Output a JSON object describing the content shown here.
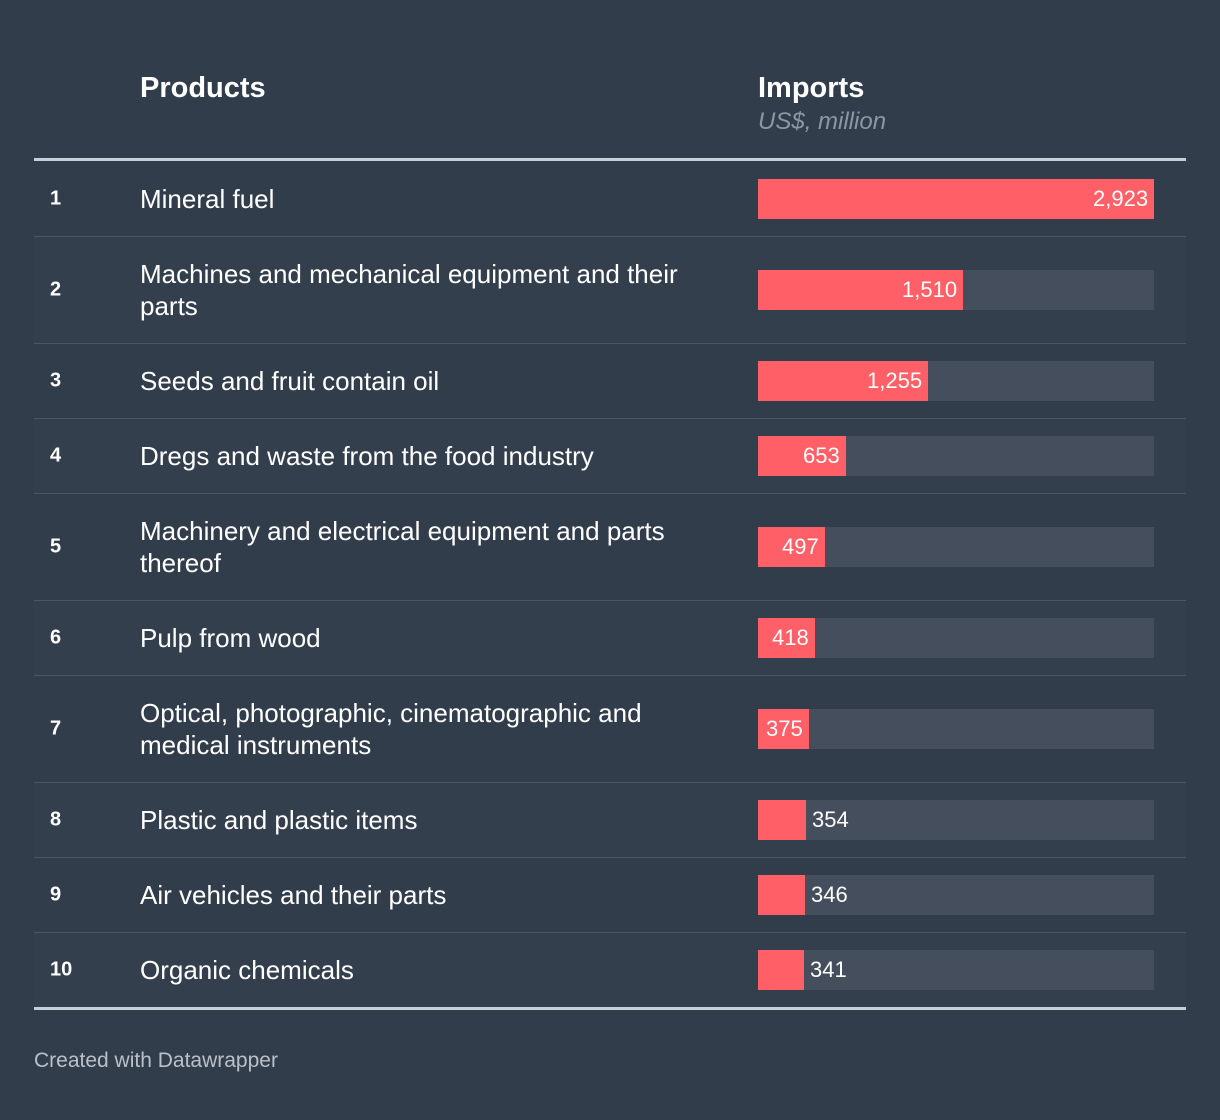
{
  "header": {
    "products_label": "Products",
    "imports_label": "Imports",
    "unit_label": "US$, million"
  },
  "chart_data": {
    "type": "bar",
    "orientation": "horizontal",
    "ylabel": "Imports",
    "unit": "US$, million",
    "xlim": [
      0,
      2923
    ],
    "categories": [
      "Mineral fuel",
      "Machines and mechanical equipment and their parts",
      "Seeds and fruit contain oil",
      "Dregs and waste from the food industry",
      "Machinery and electrical equipment and parts thereof",
      "Pulp from wood",
      "Optical, photographic, cinematographic and medical instruments",
      "Plastic and plastic items",
      "Air vehicles and their parts",
      "Organic chemicals"
    ],
    "values": [
      2923,
      1510,
      1255,
      653,
      497,
      418,
      375,
      354,
      346,
      341
    ],
    "rows": [
      {
        "rank": "1",
        "product": "Mineral fuel",
        "value": 2923,
        "label": "2,923"
      },
      {
        "rank": "2",
        "product": "Machines and mechanical equipment and their parts",
        "value": 1510,
        "label": "1,510"
      },
      {
        "rank": "3",
        "product": "Seeds and fruit contain oil",
        "value": 1255,
        "label": "1,255"
      },
      {
        "rank": "4",
        "product": "Dregs and waste from the food industry",
        "value": 653,
        "label": "653"
      },
      {
        "rank": "5",
        "product": "Machinery and electrical equipment and parts thereof",
        "value": 497,
        "label": "497"
      },
      {
        "rank": "6",
        "product": "Pulp from wood",
        "value": 418,
        "label": "418"
      },
      {
        "rank": "7",
        "product": "Optical, photographic, cinematographic and medical instruments",
        "value": 375,
        "label": "375"
      },
      {
        "rank": "8",
        "product": "Plastic and plastic items",
        "value": 354,
        "label": "354"
      },
      {
        "rank": "9",
        "product": "Air vehicles and their parts",
        "value": 346,
        "label": "346"
      },
      {
        "rank": "10",
        "product": "Organic chemicals",
        "value": 341,
        "label": "341"
      }
    ],
    "colors": {
      "bar": "#ff5f66",
      "track": "#444e5c",
      "background": "#323d4c"
    }
  },
  "footer": {
    "credit": "Created with Datawrapper"
  }
}
